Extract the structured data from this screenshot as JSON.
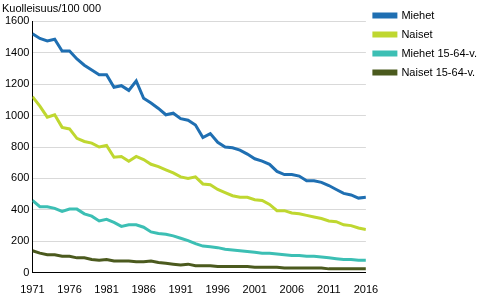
{
  "chart_data": {
    "type": "line",
    "ylabel": "Kuolleisuus/100 000",
    "x": [
      1971,
      1972,
      1973,
      1974,
      1975,
      1976,
      1977,
      1978,
      1979,
      1980,
      1981,
      1982,
      1983,
      1984,
      1985,
      1986,
      1987,
      1988,
      1989,
      1990,
      1991,
      1992,
      1993,
      1994,
      1995,
      1996,
      1997,
      1998,
      1999,
      2000,
      2001,
      2002,
      2003,
      2004,
      2005,
      2006,
      2007,
      2008,
      2009,
      2010,
      2011,
      2012,
      2013,
      2014,
      2015,
      2016
    ],
    "series": [
      {
        "name": "Miehet",
        "color": "#1f6fb2",
        "values": [
          1520,
          1490,
          1475,
          1485,
          1410,
          1410,
          1360,
          1320,
          1290,
          1260,
          1260,
          1180,
          1190,
          1160,
          1220,
          1110,
          1080,
          1045,
          1005,
          1015,
          980,
          970,
          940,
          860,
          885,
          830,
          800,
          795,
          780,
          755,
          725,
          710,
          690,
          645,
          625,
          625,
          615,
          585,
          585,
          575,
          555,
          530,
          505,
          495,
          475,
          480
        ]
      },
      {
        "name": "Naiset",
        "color": "#bfd730",
        "values": [
          1120,
          1060,
          990,
          1005,
          925,
          915,
          855,
          835,
          825,
          800,
          810,
          735,
          740,
          710,
          740,
          720,
          690,
          675,
          655,
          635,
          610,
          600,
          610,
          565,
          560,
          530,
          510,
          490,
          480,
          480,
          465,
          460,
          435,
          395,
          395,
          380,
          375,
          365,
          355,
          345,
          330,
          325,
          305,
          300,
          285,
          275
        ]
      },
      {
        "name": "Miehet 15-64-v.",
        "color": "#3cbfb4",
        "values": [
          460,
          420,
          420,
          410,
          390,
          405,
          405,
          375,
          360,
          330,
          340,
          320,
          295,
          305,
          305,
          290,
          260,
          250,
          245,
          235,
          220,
          205,
          185,
          170,
          165,
          160,
          150,
          145,
          140,
          135,
          130,
          125,
          125,
          120,
          115,
          110,
          110,
          105,
          105,
          100,
          95,
          90,
          85,
          85,
          80,
          80
        ]
      },
      {
        "name": "Naiset 15-64-v.",
        "color": "#4b5a1e",
        "values": [
          140,
          125,
          115,
          115,
          105,
          105,
          95,
          95,
          85,
          80,
          85,
          75,
          75,
          75,
          70,
          70,
          75,
          65,
          60,
          55,
          50,
          55,
          45,
          45,
          45,
          40,
          40,
          40,
          40,
          40,
          35,
          35,
          35,
          35,
          30,
          30,
          30,
          30,
          30,
          30,
          25,
          25,
          25,
          25,
          25,
          25
        ]
      }
    ],
    "xlim": [
      1971,
      2016
    ],
    "xticks": [
      1971,
      1976,
      1981,
      1986,
      1991,
      1996,
      2001,
      2006,
      2011,
      2016
    ],
    "ylim": [
      0,
      1600
    ],
    "yticks": [
      0,
      200,
      400,
      600,
      800,
      1000,
      1200,
      1400,
      1600
    ],
    "grid": true,
    "legend": "right"
  }
}
